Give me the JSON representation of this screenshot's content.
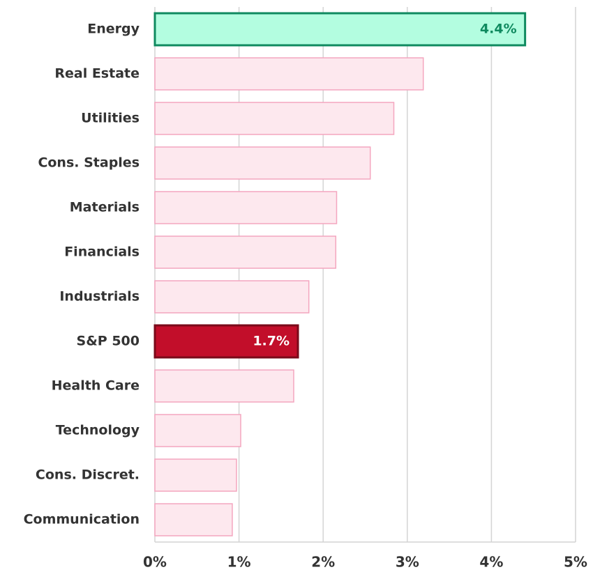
{
  "chart_data": {
    "type": "bar",
    "orientation": "horizontal",
    "categories": [
      "Energy",
      "Real Estate",
      "Utilities",
      "Cons. Staples",
      "Materials",
      "Financials",
      "Industrials",
      "S&P 500",
      "Health Care",
      "Technology",
      "Cons. Discret.",
      "Communication"
    ],
    "values": [
      4.4,
      3.19,
      2.84,
      2.56,
      2.16,
      2.15,
      1.83,
      1.7,
      1.65,
      1.02,
      0.97,
      0.92
    ],
    "value_labels": [
      "4.4%",
      null,
      null,
      null,
      null,
      null,
      null,
      "1.7%",
      null,
      null,
      null,
      null
    ],
    "colors": [
      "#b3fde0",
      "#fde8ee",
      "#fde8ee",
      "#fde8ee",
      "#fde8ee",
      "#fde8ee",
      "#fde8ee",
      "#c20e2a",
      "#fde8ee",
      "#fde8ee",
      "#fde8ee",
      "#fde8ee"
    ],
    "border_colors": [
      "#0f8a5f",
      "#f4a6bf",
      "#f4a6bf",
      "#f4a6bf",
      "#f4a6bf",
      "#f4a6bf",
      "#f4a6bf",
      "#7a0a1a",
      "#f4a6bf",
      "#f4a6bf",
      "#f4a6bf",
      "#f4a6bf"
    ],
    "label_colors": [
      "#0f8a5f",
      null,
      null,
      null,
      null,
      null,
      null,
      "#ffffff",
      null,
      null,
      null,
      null
    ],
    "xlim": [
      0,
      5
    ],
    "xticks": [
      {
        "value": 0,
        "label": "0%"
      },
      {
        "value": 1,
        "label": "1%"
      },
      {
        "value": 2,
        "label": "2%"
      },
      {
        "value": 3,
        "label": "3%"
      },
      {
        "value": 4,
        "label": "4%"
      },
      {
        "value": 5,
        "label": "5%"
      }
    ],
    "grid": true
  }
}
